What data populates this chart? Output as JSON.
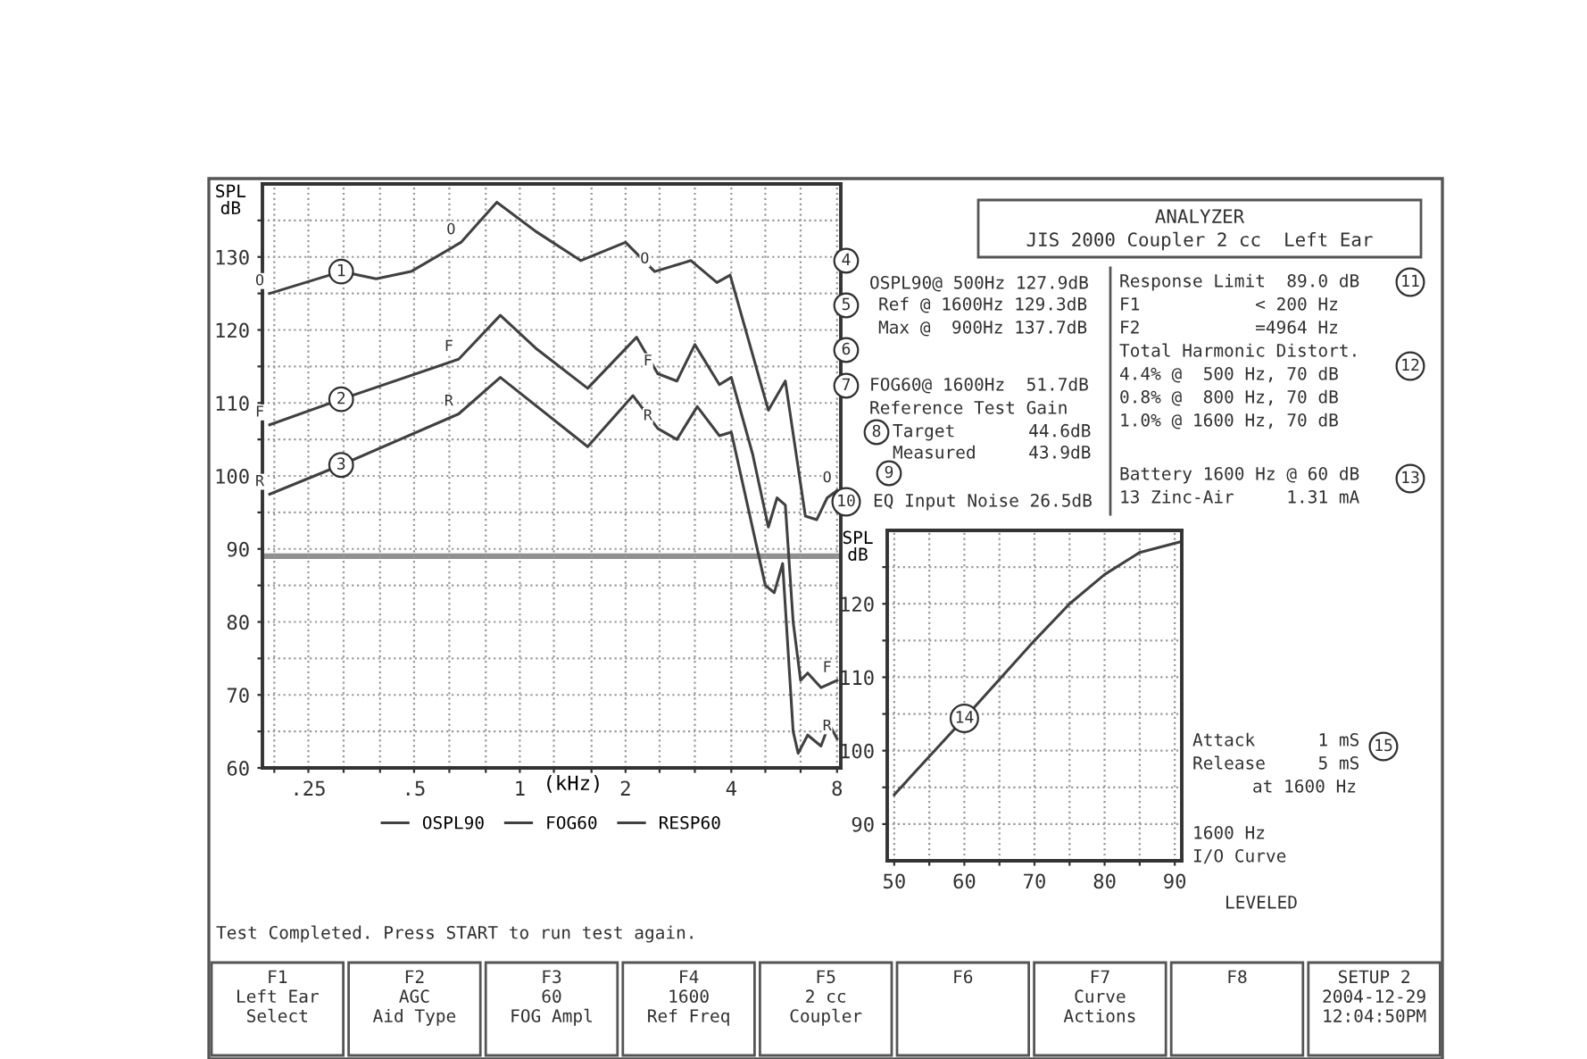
{
  "chart_data": [
    {
      "type": "line",
      "xlabel": "(kHz)",
      "ylabel": "SPL\ndB",
      "log": "x",
      "grid": true,
      "legend": "bottom",
      "xlim": [
        0.185,
        8.2
      ],
      "ylim": [
        60,
        140
      ],
      "xticks": [
        {
          "value": 0.2,
          "label": null
        },
        {
          "value": 0.25,
          "label": ".25"
        },
        {
          "value": 0.315,
          "label": null
        },
        {
          "value": 0.4,
          "label": null
        },
        {
          "value": 0.5,
          "label": ".5"
        },
        {
          "value": 0.63,
          "label": null
        },
        {
          "value": 0.8,
          "label": null
        },
        1,
        {
          "value": 1.25,
          "label": null
        },
        {
          "value": 1.6,
          "label": null
        },
        2,
        {
          "value": 2.5,
          "label": null
        },
        {
          "value": 3.15,
          "label": null
        },
        4,
        {
          "value": 5,
          "label": null
        },
        {
          "value": 6.3,
          "label": null
        },
        8
      ],
      "yticks": [
        60,
        {
          "value": 65,
          "label": null
        },
        70,
        {
          "value": 75,
          "label": null
        },
        80,
        {
          "value": 85,
          "label": null
        },
        90,
        {
          "value": 95,
          "label": null
        },
        100,
        {
          "value": 105,
          "label": null
        },
        110,
        {
          "value": 115,
          "label": null
        },
        120,
        {
          "value": 125,
          "label": null
        },
        130,
        {
          "value": 135,
          "label": null
        }
      ],
      "series": [
        {
          "name": "OSPL90",
          "color": "#404040",
          "x": [
            0.194,
            0.31,
            0.39,
            0.49,
            0.68,
            0.86,
            1.11,
            1.49,
            2.0,
            2.42,
            3.07,
            3.64,
            3.97,
            5.1,
            5.7,
            6.5,
            7.0,
            7.5,
            8.0
          ],
          "values": [
            125,
            128,
            127,
            128,
            132,
            137.5,
            133.5,
            129.5,
            132,
            128,
            129.5,
            126.5,
            127.5,
            109,
            113,
            94.5,
            94,
            97,
            98
          ]
        },
        {
          "name": "FOG60",
          "color": "#404040",
          "x": [
            0.194,
            0.31,
            0.67,
            0.88,
            1.11,
            1.56,
            2.15,
            2.47,
            2.8,
            3.15,
            3.7,
            4.0,
            4.6,
            5.1,
            5.4,
            5.7,
            6.0,
            6.3,
            6.6,
            7.2,
            8.0
          ],
          "values": [
            107,
            110.5,
            116,
            122,
            117.5,
            112,
            119,
            114,
            113,
            118,
            112.5,
            113.5,
            103,
            93,
            97,
            96,
            80,
            72,
            73,
            71,
            72
          ]
        },
        {
          "name": "RESP60",
          "color": "#404040",
          "x": [
            0.194,
            0.31,
            0.67,
            0.88,
            1.56,
            2.1,
            2.47,
            2.8,
            3.2,
            3.7,
            4.0,
            5.0,
            5.3,
            5.6,
            6.0,
            6.2,
            6.6,
            7.2,
            7.6,
            8.0
          ],
          "values": [
            97.5,
            101.5,
            108.5,
            113.5,
            104,
            111,
            106.5,
            105,
            109.5,
            105.5,
            106,
            85,
            84,
            88,
            65,
            62,
            64.5,
            63,
            66,
            64
          ]
        }
      ],
      "ref_lines": [
        {
          "axis": "y",
          "value": 89,
          "color": "#909090"
        }
      ],
      "annotations": [
        {
          "text": "1",
          "x": 0.31,
          "y": 128
        },
        {
          "text": "2",
          "x": 0.31,
          "y": 110.5
        },
        {
          "text": "3",
          "x": 0.31,
          "y": 101.5
        },
        {
          "text": "O",
          "x": 0.194,
          "y": 125
        },
        {
          "text": "O",
          "x": 0.68,
          "y": 132
        },
        {
          "text": "O",
          "x": 2.42,
          "y": 128
        },
        {
          "text": "O",
          "x": 8.0,
          "y": 98
        },
        {
          "text": "F",
          "x": 0.194,
          "y": 107
        },
        {
          "text": "F",
          "x": 0.67,
          "y": 116
        },
        {
          "text": "F",
          "x": 2.47,
          "y": 114
        },
        {
          "text": "F",
          "x": 8.0,
          "y": 72
        },
        {
          "text": "R",
          "x": 0.194,
          "y": 97.5
        },
        {
          "text": "R",
          "x": 0.67,
          "y": 108.5
        },
        {
          "text": "R",
          "x": 2.47,
          "y": 106.5
        },
        {
          "text": "R",
          "x": 8.0,
          "y": 64
        },
        "ANALYZER",
        "JIS 2000 Coupler 2 cc  Left Ear",
        "4",
        "OSPL90@ 500Hz 127.9dB",
        "5",
        "Ref @ 1600Hz 129.3dB",
        "Max @  900Hz 137.7dB",
        "6",
        "7",
        "FOG60@ 1600Hz  51.7dB",
        "Reference Test Gain",
        "8",
        "Target       44.6dB",
        "Measured     43.9dB",
        "9",
        "10",
        "EQ Input Noise 26.5dB",
        "Response Limit  89.0 dB",
        "11",
        "F1           < 200 Hz",
        "F2           =4964 Hz",
        "Total Harmonic Distort.",
        "12",
        "4.4% @  500 Hz, 70 dB",
        "0.8% @  800 Hz, 70 dB",
        "1.0% @ 1600 Hz, 70 dB",
        "Battery 1600 Hz @ 60 dB",
        "13",
        "13 Zinc-Air     1.31 mA",
        "Test Completed. Press START to run test again.",
        "F1\nLeft Ear\nSelect",
        "F2\nAGC\nAid Type",
        "F3\n60\nFOG Ampl",
        "F4\n1600\nRef Freq",
        "F5\n2 cc\nCoupler",
        "F6",
        "F7\nCurve\nActions",
        "F8",
        "SETUP 2\n2004-12-29\n12:04:50PM"
      ]
    },
    {
      "type": "line",
      "ylabel": "SPL\ndB",
      "grid": true,
      "xlim": [
        49,
        91
      ],
      "ylim": [
        85,
        130
      ],
      "xticks": [
        50,
        {
          "value": 55,
          "label": null
        },
        60,
        {
          "value": 65,
          "label": null
        },
        70,
        {
          "value": 75,
          "label": null
        },
        80,
        {
          "value": 85,
          "label": null
        },
        90
      ],
      "yticks": [
        90,
        {
          "value": 95,
          "label": null
        },
        100,
        {
          "value": 105,
          "label": null
        },
        110,
        {
          "value": 115,
          "label": null
        },
        120,
        {
          "value": 125,
          "label": null
        }
      ],
      "series": [
        {
          "color": "#404040",
          "x": [
            50,
            60,
            70,
            75,
            80,
            85,
            91
          ],
          "values": [
            94,
            104.4,
            115,
            120,
            124,
            127,
            128.5
          ]
        }
      ],
      "annotations": [
        {
          "text": "14",
          "x": 60,
          "y": 104.4
        },
        "Attack      1 mS",
        "Release     5 mS",
        "at 1600 Hz",
        "15",
        "1600 Hz",
        "I/O Curve",
        "LEVELED"
      ]
    }
  ]
}
